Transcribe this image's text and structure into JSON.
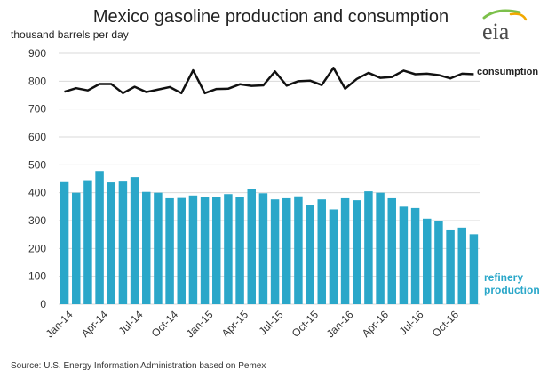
{
  "chart_data": {
    "type": "bar",
    "title": "Mexico gasoline production and consumption",
    "ylabel": "thousand barrels per day",
    "ylim": [
      0,
      900
    ],
    "yticks": [
      "0",
      "100",
      "200",
      "300",
      "400",
      "500",
      "600",
      "700",
      "800",
      "900"
    ],
    "grid": true,
    "xtick_labels": [
      "Jan-14",
      "Apr-14",
      "Jul-14",
      "Oct-14",
      "Jan-15",
      "Apr-15",
      "Jul-15",
      "Oct-15",
      "Jan-16",
      "Apr-16",
      "Jul-16",
      "Oct-16"
    ],
    "categories": [
      "Jan-14",
      "Feb-14",
      "Mar-14",
      "Apr-14",
      "May-14",
      "Jun-14",
      "Jul-14",
      "Aug-14",
      "Sep-14",
      "Oct-14",
      "Nov-14",
      "Dec-14",
      "Jan-15",
      "Feb-15",
      "Mar-15",
      "Apr-15",
      "May-15",
      "Jun-15",
      "Jul-15",
      "Aug-15",
      "Sep-15",
      "Oct-15",
      "Nov-15",
      "Dec-15",
      "Jan-16",
      "Feb-16",
      "Mar-16",
      "Apr-16",
      "May-16",
      "Jun-16",
      "Jul-16",
      "Aug-16",
      "Sep-16",
      "Oct-16",
      "Nov-16",
      "Dec-16"
    ],
    "series": [
      {
        "name": "refinery production",
        "type": "bar",
        "color": "#2aa7c9",
        "values": [
          438,
          400,
          445,
          478,
          437,
          440,
          456,
          403,
          400,
          380,
          381,
          390,
          385,
          384,
          395,
          383,
          412,
          398,
          376,
          380,
          387,
          355,
          376,
          340,
          380,
          373,
          405,
          400,
          380,
          350,
          345,
          307,
          300,
          265,
          275,
          251
        ]
      },
      {
        "name": "consumption",
        "type": "line",
        "color": "#111111",
        "values": [
          762,
          775,
          767,
          790,
          790,
          757,
          780,
          761,
          770,
          779,
          757,
          839,
          757,
          772,
          773,
          789,
          783,
          785,
          835,
          784,
          800,
          802,
          786,
          848,
          773,
          808,
          830,
          812,
          815,
          838,
          825,
          827,
          822,
          810,
          827,
          825
        ]
      }
    ],
    "source": "Source: U.S. Energy Information Administration based on Pemex",
    "logo": "eia"
  }
}
